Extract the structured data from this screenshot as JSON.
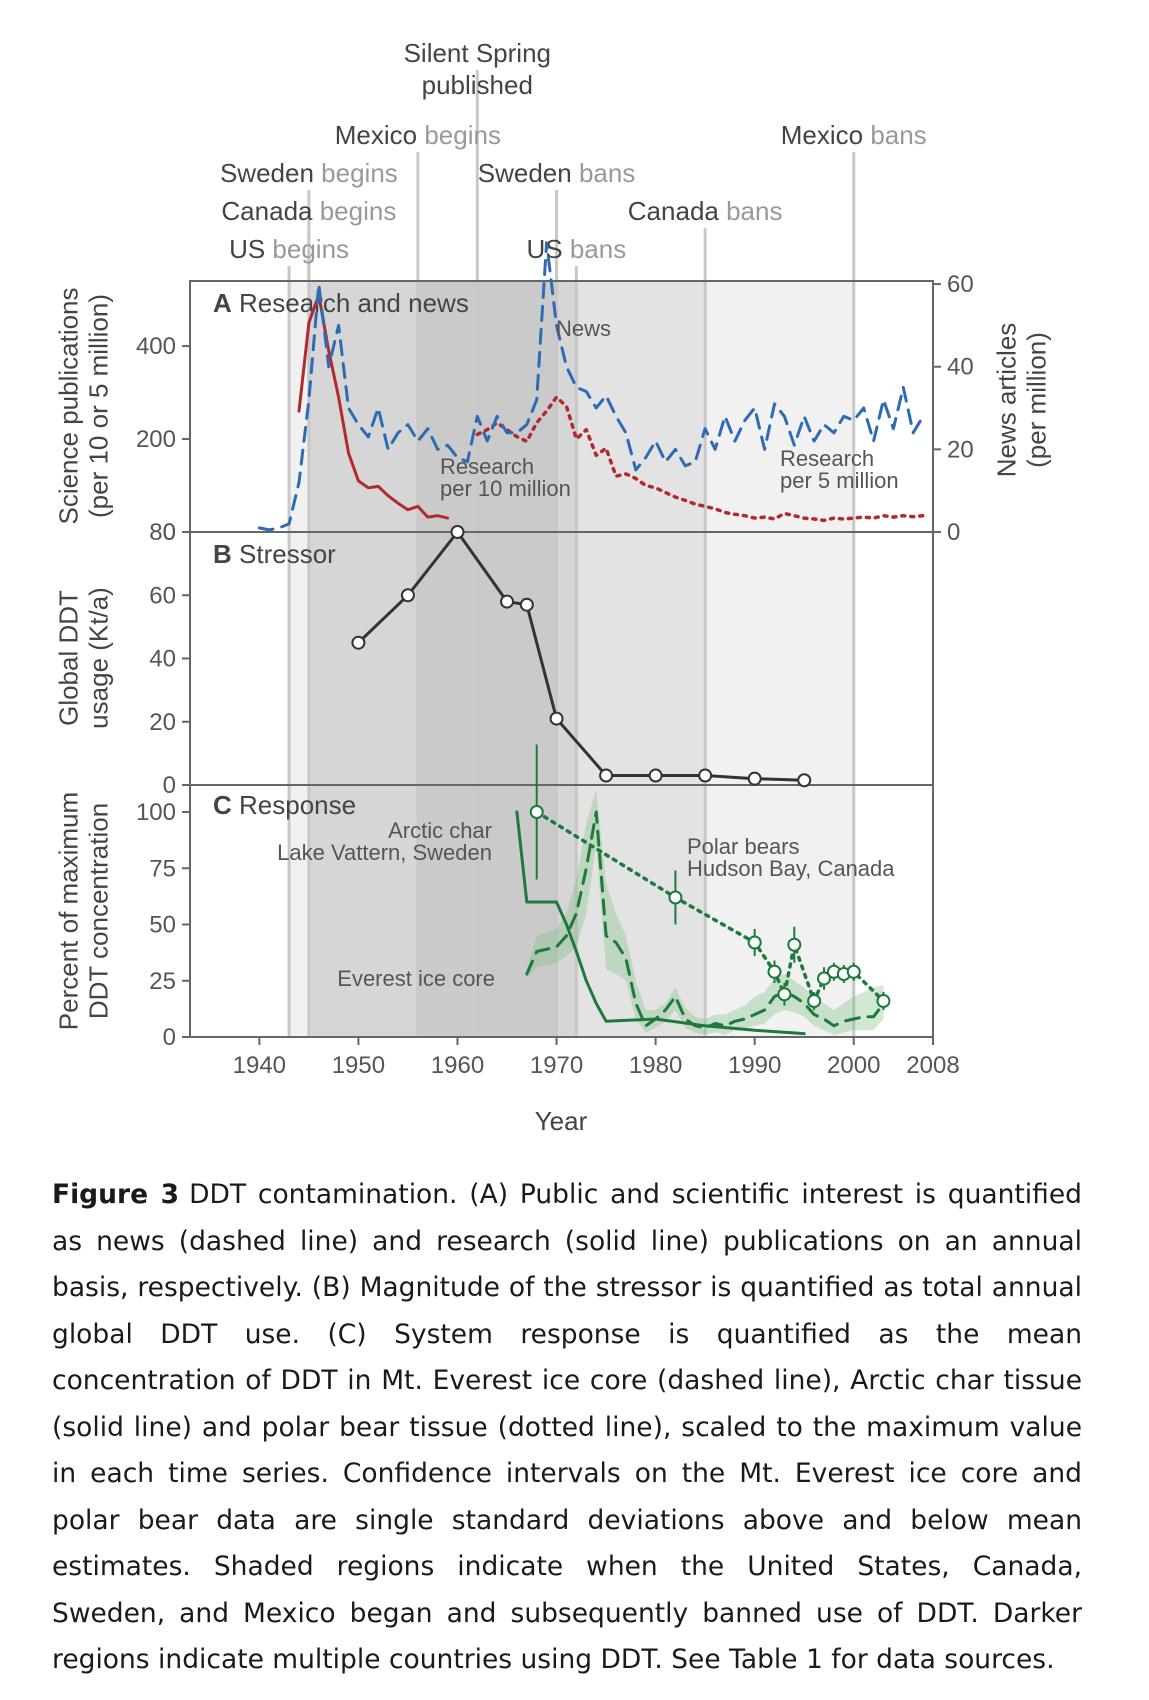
{
  "figure": {
    "label": "Figure 3",
    "caption": "DDT contamination. (A) Public and scientific interest is quantified as news (dashed line) and research (solid line) publications on an annual basis, respectively. (B) Magnitude of the stressor is quantified as total annual global DDT use. (C) System response is quantified as the mean concentration of DDT in Mt. Everest ice core (dashed line), Arctic char tissue (solid line) and polar bear tissue (dotted line), scaled to the maximum value in each time series. Confidence intervals on the Mt. Everest ice core and polar bear data are single standard deviations above and below mean estimates. Shaded regions indicate when the United States, Canada, Sweden, and Mexico began and subsequently banned use of DDT. Darker regions indicate multiple countries using DDT. See Table 1 for data sources."
  },
  "events": [
    {
      "country": "US",
      "action": "begins",
      "year": 1943
    },
    {
      "country": "Canada",
      "action": "begins",
      "year": 1945
    },
    {
      "country": "Sweden",
      "action": "begins",
      "year": 1945
    },
    {
      "country": "Mexico",
      "action": "begins",
      "year": 1956
    },
    {
      "country": "Silent Spring",
      "action": "published",
      "year": 1962
    },
    {
      "country": "Sweden",
      "action": "bans",
      "year": 1970
    },
    {
      "country": "US",
      "action": "bans",
      "year": 1972
    },
    {
      "country": "Canada",
      "action": "bans",
      "year": 1985
    },
    {
      "country": "Mexico",
      "action": "bans",
      "year": 2000
    }
  ],
  "chart_data": [
    {
      "type": "line",
      "panel": "A",
      "title": "Research and news",
      "xlabel": "",
      "ylabel": "Science publications (per 10 or 5 million)",
      "y2label": "News articles (per million)",
      "ylim": [
        0,
        540
      ],
      "y2lim": [
        0,
        60.75
      ],
      "yticks": [
        0,
        200,
        400
      ],
      "y2ticks": [
        0,
        20,
        40,
        60
      ],
      "series": [
        {
          "name": "Research per 10 million",
          "axis": "left",
          "style": "solid",
          "color": "#b22a2e",
          "x": [
            1944,
            1945,
            1946,
            1947,
            1948,
            1949,
            1950,
            1951,
            1952,
            1953,
            1954,
            1955,
            1956,
            1957,
            1958,
            1959
          ],
          "y": [
            260,
            450,
            510,
            390,
            290,
            170,
            110,
            95,
            98,
            78,
            62,
            48,
            55,
            32,
            35,
            30
          ]
        },
        {
          "name": "Research per 5 million",
          "axis": "left",
          "style": "dotted",
          "color": "#b22a2e",
          "x": [
            1962,
            1963,
            1964,
            1965,
            1966,
            1967,
            1968,
            1969,
            1970,
            1971,
            1972,
            1973,
            1974,
            1975,
            1976,
            1977,
            1978,
            1979,
            1980,
            1981,
            1982,
            1983,
            1984,
            1985,
            1986,
            1987,
            1988,
            1989,
            1990,
            1991,
            1992,
            1993,
            1994,
            1995,
            1996,
            1997,
            1998,
            1999,
            2000,
            2001,
            2002,
            2003,
            2004,
            2005,
            2006,
            2007
          ],
          "y": [
            210,
            220,
            235,
            220,
            205,
            195,
            235,
            260,
            290,
            270,
            200,
            220,
            165,
            180,
            120,
            125,
            115,
            100,
            95,
            85,
            75,
            68,
            60,
            55,
            50,
            42,
            38,
            35,
            30,
            32,
            28,
            40,
            35,
            30,
            28,
            25,
            30,
            28,
            30,
            32,
            30,
            35,
            32,
            35,
            33,
            35
          ]
        },
        {
          "name": "News",
          "axis": "right",
          "style": "dashed",
          "color": "#2e6bb5",
          "x": [
            1940,
            1941,
            1942,
            1943,
            1944,
            1945,
            1946,
            1947,
            1948,
            1949,
            1950,
            1951,
            1952,
            1953,
            1954,
            1955,
            1956,
            1957,
            1958,
            1959,
            1960,
            1961,
            1962,
            1963,
            1964,
            1965,
            1966,
            1967,
            1968,
            1969,
            1970,
            1971,
            1972,
            1973,
            1974,
            1975,
            1976,
            1977,
            1978,
            1979,
            1980,
            1981,
            1982,
            1983,
            1984,
            1985,
            1986,
            1987,
            1988,
            1989,
            1990,
            1991,
            1992,
            1993,
            1994,
            1995,
            1996,
            1997,
            1998,
            1999,
            2000,
            2001,
            2002,
            2003,
            2004,
            2005,
            2006,
            2007
          ],
          "y": [
            1,
            0.5,
            1,
            2,
            12,
            32,
            60,
            40,
            50,
            30,
            26,
            23,
            30,
            20,
            24,
            26,
            22,
            25,
            20,
            21,
            18,
            17,
            28,
            22,
            28,
            24,
            24,
            26,
            32,
            70,
            50,
            40,
            35,
            34,
            30,
            33,
            28,
            24,
            15,
            18,
            22,
            17,
            20,
            16,
            17,
            25,
            20,
            28,
            22,
            27,
            30,
            20,
            31,
            28,
            21,
            28,
            22,
            26,
            24,
            28,
            27,
            30,
            22,
            32,
            25,
            35,
            24,
            28
          ]
        }
      ]
    },
    {
      "type": "line",
      "panel": "B",
      "title": "Stressor",
      "xlabel": "",
      "ylabel": "Global DDT usage (Kt/a)",
      "ylim": [
        0,
        80
      ],
      "yticks": [
        0,
        20,
        40,
        60,
        80
      ],
      "series": [
        {
          "name": "",
          "color": "#333333",
          "x": [
            1950,
            1955,
            1960,
            1965,
            1967,
            1970,
            1975,
            1980,
            1985,
            1990,
            1995
          ],
          "y": [
            45,
            60,
            80,
            58,
            57,
            21,
            3,
            3,
            3,
            2,
            1.5
          ]
        }
      ]
    },
    {
      "type": "line",
      "panel": "C",
      "title": "Response",
      "xlabel": "Year",
      "ylabel": "Percent of maximum DDT concentration",
      "xlim": [
        1933,
        2008
      ],
      "xticks": [
        1940,
        1950,
        1960,
        1970,
        1980,
        1990,
        2000,
        2008
      ],
      "ylim": [
        0,
        112
      ],
      "yticks": [
        0,
        25,
        50,
        75,
        100
      ],
      "series": [
        {
          "name": "Arctic char Lake Vattern, Sweden",
          "style": "solid",
          "color": "#1e7a3c",
          "x": [
            1966,
            1967,
            1968,
            1969,
            1970,
            1971,
            1972,
            1973,
            1974,
            1975,
            1980,
            1985,
            1990,
            1995
          ],
          "y": [
            100,
            60,
            60,
            60,
            60,
            50,
            38,
            25,
            15,
            7,
            8,
            5,
            3,
            1.5
          ]
        },
        {
          "name": "Everest ice core",
          "style": "dashed",
          "color": "#1e7a3c",
          "x": [
            1967,
            1968,
            1970,
            1971,
            1972,
            1973,
            1974,
            1975,
            1976,
            1977,
            1978,
            1979,
            1980,
            1981,
            1982,
            1983,
            1984,
            1985,
            1986,
            1987,
            1988,
            1989,
            1990,
            1991,
            1992,
            1993,
            1994,
            1995,
            1996,
            1997,
            1998,
            1999,
            2000,
            2001,
            2002,
            2003
          ],
          "y": [
            28,
            38,
            40,
            45,
            55,
            75,
            100,
            45,
            42,
            35,
            15,
            5,
            8,
            12,
            18,
            8,
            5,
            4,
            6,
            5,
            7,
            8,
            10,
            12,
            18,
            20,
            18,
            15,
            10,
            8,
            5,
            7,
            8,
            9,
            9,
            15
          ],
          "band_upper": [
            30,
            45,
            48,
            55,
            70,
            95,
            110,
            68,
            55,
            45,
            25,
            12,
            12,
            15,
            22,
            13,
            9,
            8,
            10,
            10,
            12,
            14,
            18,
            20,
            26,
            28,
            25,
            22,
            18,
            15,
            12,
            15,
            18,
            20,
            22,
            23
          ],
          "band_lower": [
            26,
            31,
            33,
            36,
            40,
            55,
            85,
            30,
            28,
            25,
            8,
            2,
            4,
            7,
            12,
            4,
            2,
            1,
            2,
            1,
            3,
            4,
            5,
            6,
            10,
            12,
            11,
            9,
            5,
            3,
            1,
            2,
            3,
            3,
            3,
            8
          ]
        },
        {
          "name": "Polar bears Hudson Bay, Canada",
          "style": "dotted",
          "color": "#1e7a3c",
          "x": [
            1968,
            1982,
            1990,
            1992,
            1993,
            1994,
            1996,
            1997,
            1998,
            1999,
            2000,
            2003
          ],
          "y": [
            100,
            62,
            42,
            29,
            19,
            41,
            16,
            26,
            29,
            28,
            29,
            16
          ],
          "err": [
            30,
            12,
            6,
            5,
            5,
            8,
            4,
            5,
            4,
            4,
            4,
            4
          ]
        }
      ]
    }
  ]
}
